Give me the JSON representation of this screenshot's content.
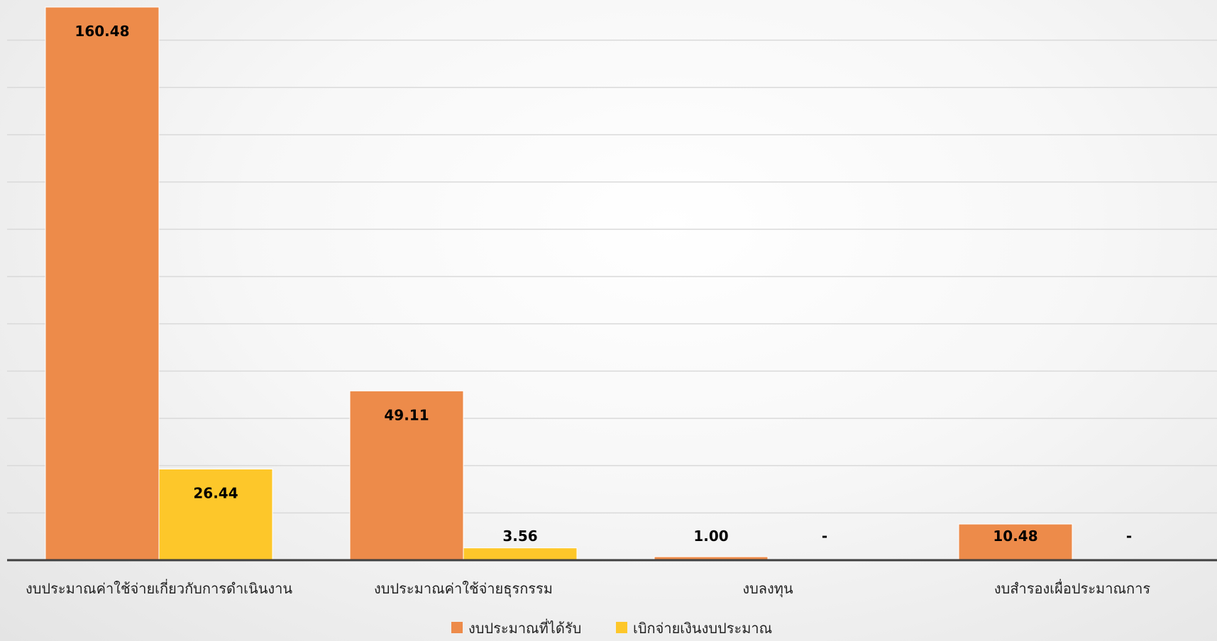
{
  "chart_data": {
    "type": "bar",
    "categories": [
      "งบประมาณค่าใช้จ่ายเกี่ยวกับการดำเนินงาน",
      "งบประมาณค่าใช้จ่ายธุรกรรม",
      "งบลงทุน",
      "งบสำรองเผื่อประมาณการ"
    ],
    "series": [
      {
        "name": "งบประมาณที่ได้รับ",
        "color": "#ED8B4A",
        "values": [
          160.48,
          49.11,
          1.0,
          10.48
        ],
        "labels": [
          "160.48",
          "49.11",
          "1.00",
          "10.48"
        ]
      },
      {
        "name": "เบิกจ่ายเงินงบประมาณ",
        "color": "#FDC72A",
        "values": [
          26.44,
          3.56,
          0,
          0
        ],
        "labels": [
          "26.44",
          "3.56",
          "-",
          "-"
        ]
      }
    ],
    "ylim": [
      0,
      160.48
    ],
    "grid": true,
    "legend_position": "bottom"
  }
}
